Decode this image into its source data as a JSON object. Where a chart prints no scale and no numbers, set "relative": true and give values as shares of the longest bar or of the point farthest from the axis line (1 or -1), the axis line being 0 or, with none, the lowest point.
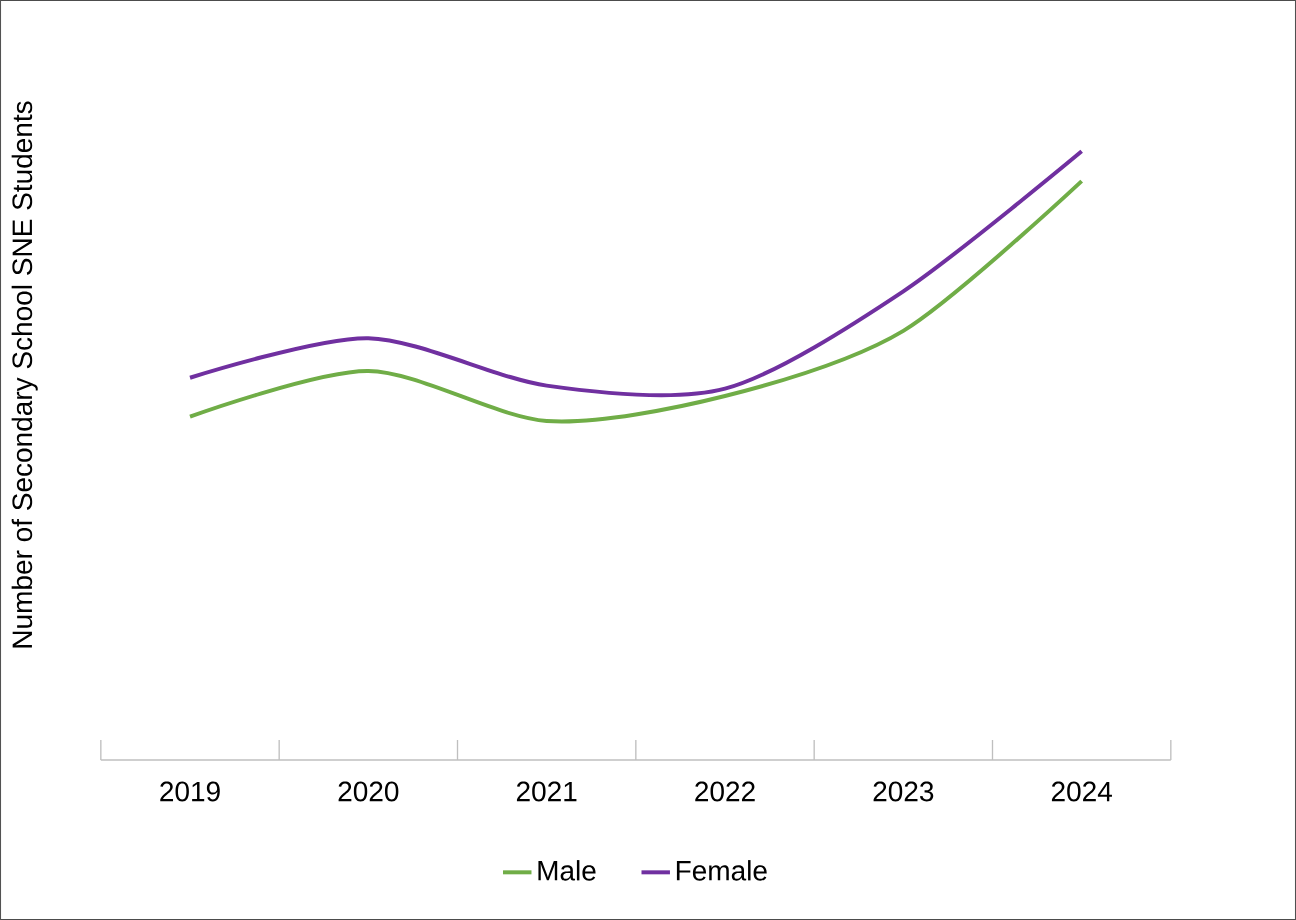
{
  "chart_data": {
    "type": "line",
    "relative": true,
    "ylabel": "Number of Secondary School SNE Students",
    "categories": [
      "2019",
      "2020",
      "2021",
      "2022",
      "2023",
      "2024"
    ],
    "series": [
      {
        "name": "Male",
        "color": "#70ad47",
        "values": [
          0.564,
          0.639,
          0.557,
          0.598,
          0.705,
          0.951
        ]
      },
      {
        "name": "Female",
        "color": "#7030a0",
        "values": [
          0.628,
          0.693,
          0.615,
          0.61,
          0.77,
          1.0
        ]
      }
    ],
    "legend": "bottom"
  }
}
